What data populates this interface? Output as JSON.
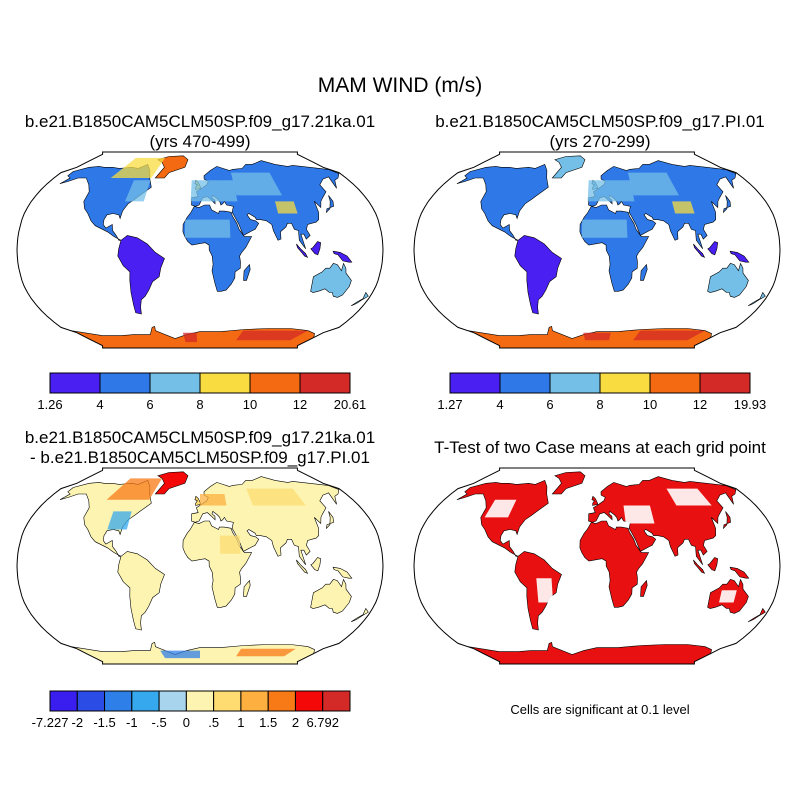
{
  "title": "MAM WIND (m/s)",
  "panels": {
    "case1": {
      "title_line1": "b.e21.B1850CAM5CLM50SP.f09_g17.21ka.01",
      "title_line2": "(yrs 470-499)",
      "colorbar": {
        "colors": [
          "#4a1ff2",
          "#2f78e8",
          "#74bfe8",
          "#f8dc40",
          "#f46a12",
          "#d42a27"
        ],
        "labels": [
          "1.26",
          "4",
          "6",
          "8",
          "10",
          "12",
          "20.61"
        ]
      }
    },
    "case2": {
      "title_line1": "b.e21.B1850CAM5CLM50SP.f09_g17.PI.01",
      "title_line2": "(yrs 270-299)",
      "colorbar": {
        "colors": [
          "#4a1ff2",
          "#2f78e8",
          "#74bfe8",
          "#f8dc40",
          "#f46a12",
          "#d42a27"
        ],
        "labels": [
          "1.27",
          "4",
          "6",
          "8",
          "10",
          "12",
          "19.93"
        ]
      }
    },
    "diff": {
      "title_line1": "b.e21.B1850CAM5CLM50SP.f09_g17.21ka.01",
      "title_line2": "- b.e21.B1850CAM5CLM50SP.f09_g17.PI.01",
      "colorbar": {
        "colors": [
          "#3a1ef0",
          "#2b4de6",
          "#2f7fe8",
          "#36a9ee",
          "#a8d4ee",
          "#fcf4b0",
          "#fedc72",
          "#fdb040",
          "#f87a16",
          "#f40808",
          "#d42a27"
        ],
        "labels": [
          "-7.227",
          "-2",
          "-1.5",
          "-1",
          "-.5",
          "0",
          ".5",
          "1",
          "1.5",
          "2",
          "6.792"
        ]
      }
    },
    "ttest": {
      "title": "T-Test of two Case means at each grid point",
      "note": "Cells are significant at 0.1 level",
      "color": "#e81010"
    }
  }
}
